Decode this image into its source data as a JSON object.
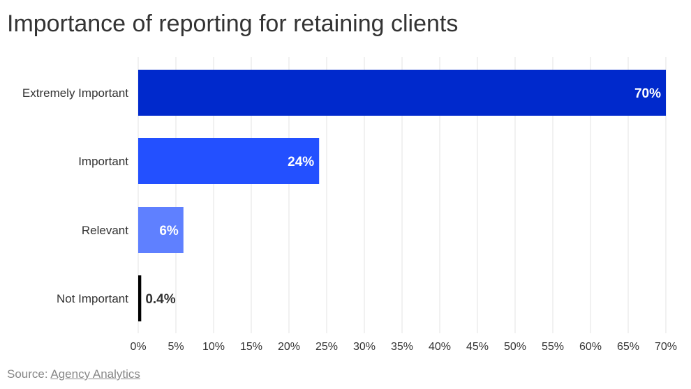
{
  "chart_data": {
    "type": "bar",
    "orientation": "horizontal",
    "title": "Importance of reporting for retaining clients",
    "categories": [
      "Extremely Important",
      "Important",
      "Relevant",
      "Not Important"
    ],
    "values": [
      70,
      24,
      6,
      0.4
    ],
    "data_labels": [
      "70%",
      "24%",
      "6%",
      "0.4%"
    ],
    "bar_colors": [
      "#0029cc",
      "#2350ff",
      "#5f80ff",
      "#000000"
    ],
    "xlim": [
      0,
      70
    ],
    "x_ticks": [
      "0%",
      "5%",
      "10%",
      "15%",
      "20%",
      "25%",
      "30%",
      "35%",
      "40%",
      "45%",
      "50%",
      "55%",
      "60%",
      "65%",
      "70%"
    ],
    "grid": "vertical",
    "legend": "none"
  },
  "source": {
    "prefix": "Source:",
    "link_text": "Agency Analytics"
  }
}
